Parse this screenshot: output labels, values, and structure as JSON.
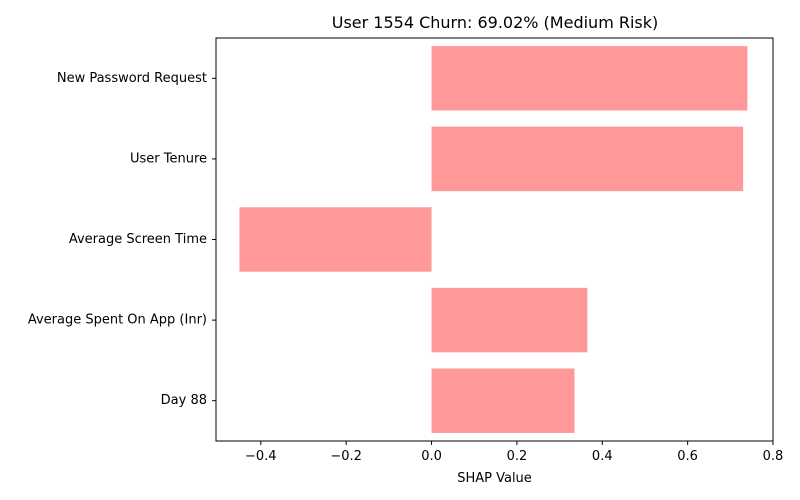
{
  "chart_data": {
    "type": "bar",
    "orientation": "horizontal",
    "title": "User 1554 Churn: 69.02% (Medium Risk)",
    "xlabel": "SHAP Value",
    "ylabel": "",
    "categories": [
      "New Password Request",
      "User Tenure",
      "Average Screen Time",
      "Average Spent On App (Inr)",
      "Day 88"
    ],
    "values": [
      0.74,
      0.73,
      -0.45,
      0.365,
      0.335
    ],
    "xlim": [
      -0.505,
      0.8
    ],
    "xticks": [
      -0.4,
      -0.2,
      0.0,
      0.2,
      0.4,
      0.6,
      0.8
    ],
    "xtick_labels": [
      "−0.4",
      "−0.2",
      "0.0",
      "0.2",
      "0.4",
      "0.6",
      "0.8"
    ],
    "bar_color": "#ff9999",
    "grid": false,
    "legend": "none"
  }
}
